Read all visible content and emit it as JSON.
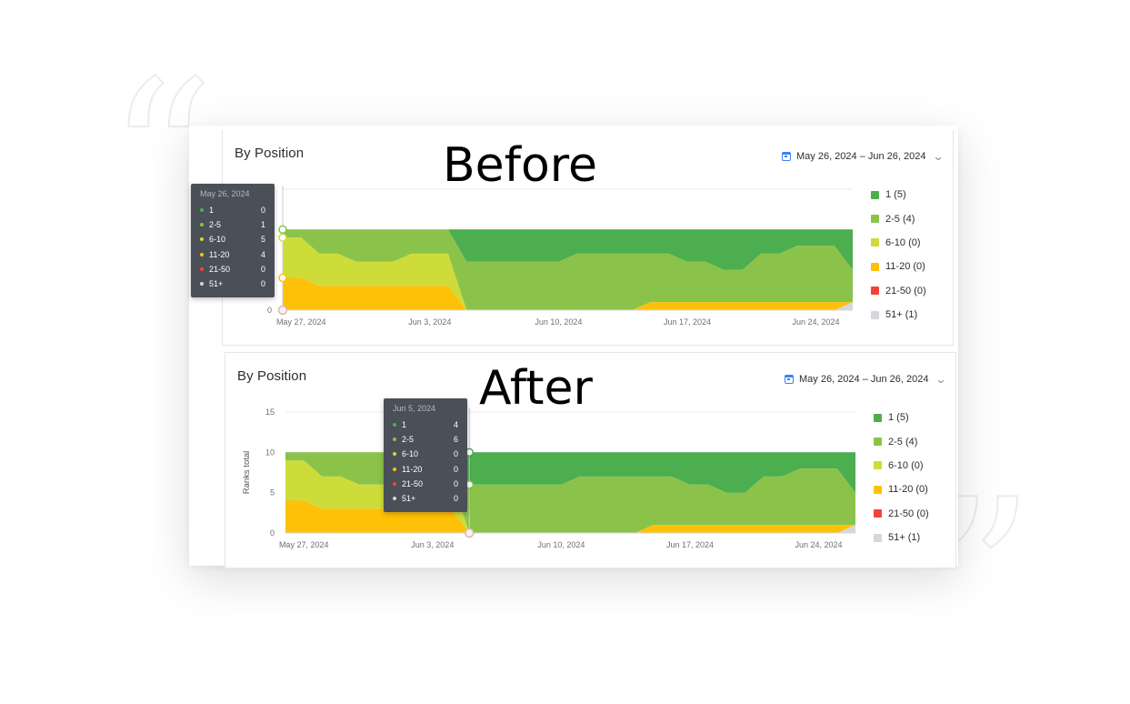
{
  "colors": {
    "1": "#4cae4f",
    "2-5": "#8bc34a",
    "6-10": "#cddc39",
    "11-20": "#ffc107",
    "21-50": "#f44336",
    "51+": "#d3d7de"
  },
  "panels": [
    {
      "id": "before",
      "title": "By Position",
      "overlay_label": "Before",
      "date_range": "May 26, 2024 – Jun 26, 2024",
      "legend": [
        {
          "key": "1",
          "label": "1 (5)"
        },
        {
          "key": "2-5",
          "label": "2-5 (4)"
        },
        {
          "key": "6-10",
          "label": "6-10 (0)"
        },
        {
          "key": "11-20",
          "label": "11-20 (0)"
        },
        {
          "key": "21-50",
          "label": "21-50 (0)"
        },
        {
          "key": "51+",
          "label": "51+ (1)"
        }
      ],
      "tooltip": {
        "date": "May 26, 2024",
        "rows": [
          {
            "key": "1",
            "name": "1",
            "value": "0"
          },
          {
            "key": "2-5",
            "name": "2-5",
            "value": "1"
          },
          {
            "key": "6-10",
            "name": "6-10",
            "value": "5"
          },
          {
            "key": "11-20",
            "name": "11-20",
            "value": "4"
          },
          {
            "key": "21-50",
            "name": "21-50",
            "value": "0"
          },
          {
            "key": "51+",
            "name": "51+",
            "value": "0"
          }
        ]
      }
    },
    {
      "id": "after",
      "title": "By Position",
      "overlay_label": "After",
      "date_range": "May 26, 2024 – Jun 26, 2024",
      "legend": [
        {
          "key": "1",
          "label": "1 (5)"
        },
        {
          "key": "2-5",
          "label": "2-5 (4)"
        },
        {
          "key": "6-10",
          "label": "6-10 (0)"
        },
        {
          "key": "11-20",
          "label": "11-20 (0)"
        },
        {
          "key": "21-50",
          "label": "21-50 (0)"
        },
        {
          "key": "51+",
          "label": "51+ (1)"
        }
      ],
      "tooltip": {
        "date": "Jun 5, 2024",
        "rows": [
          {
            "key": "1",
            "name": "1",
            "value": "4"
          },
          {
            "key": "2-5",
            "name": "2-5",
            "value": "6"
          },
          {
            "key": "6-10",
            "name": "6-10",
            "value": "0"
          },
          {
            "key": "11-20",
            "name": "11-20",
            "value": "0"
          },
          {
            "key": "21-50",
            "name": "21-50",
            "value": "0"
          },
          {
            "key": "51+",
            "name": "51+",
            "value": "0"
          }
        ]
      }
    }
  ],
  "chart_data": [
    {
      "panel": "before",
      "type": "area",
      "stacked": true,
      "title": "By Position",
      "ylabel": "",
      "y_ticks": [
        0
      ],
      "ylim": [
        0,
        15
      ],
      "x_ticks": [
        "May 27, 2024",
        "Jun 3, 2024",
        "Jun 10, 2024",
        "Jun 17, 2024",
        "Jun 24, 2024"
      ],
      "x": [
        "2024-05-26",
        "2024-05-27",
        "2024-05-28",
        "2024-05-29",
        "2024-05-30",
        "2024-05-31",
        "2024-06-01",
        "2024-06-02",
        "2024-06-03",
        "2024-06-04",
        "2024-06-05",
        "2024-06-06",
        "2024-06-07",
        "2024-06-08",
        "2024-06-09",
        "2024-06-10",
        "2024-06-11",
        "2024-06-12",
        "2024-06-13",
        "2024-06-14",
        "2024-06-15",
        "2024-06-16",
        "2024-06-17",
        "2024-06-18",
        "2024-06-19",
        "2024-06-20",
        "2024-06-21",
        "2024-06-22",
        "2024-06-23",
        "2024-06-24",
        "2024-06-25",
        "2024-06-26"
      ],
      "series": [
        {
          "key": "51+",
          "name": "51+",
          "values": [
            0,
            0,
            0,
            0,
            0,
            0,
            0,
            0,
            0,
            0,
            0,
            0,
            0,
            0,
            0,
            0,
            0,
            0,
            0,
            0,
            0,
            0,
            0,
            0,
            0,
            0,
            0,
            0,
            0,
            0,
            0,
            1
          ]
        },
        {
          "key": "11-20",
          "name": "11-20",
          "values": [
            4,
            4,
            3,
            3,
            3,
            3,
            3,
            3,
            3,
            3,
            0,
            0,
            0,
            0,
            0,
            0,
            0,
            0,
            0,
            0,
            1,
            1,
            1,
            1,
            1,
            1,
            1,
            1,
            1,
            1,
            1,
            0
          ]
        },
        {
          "key": "6-10",
          "name": "6-10",
          "values": [
            5,
            5,
            4,
            4,
            3,
            3,
            3,
            4,
            4,
            4,
            0,
            0,
            0,
            0,
            0,
            0,
            0,
            0,
            0,
            0,
            0,
            0,
            0,
            0,
            0,
            0,
            0,
            0,
            0,
            0,
            0,
            0
          ]
        },
        {
          "key": "2-5",
          "name": "2-5",
          "values": [
            1,
            1,
            3,
            3,
            4,
            4,
            4,
            3,
            3,
            3,
            6,
            6,
            6,
            6,
            6,
            6,
            7,
            7,
            7,
            7,
            6,
            6,
            5,
            5,
            4,
            4,
            6,
            6,
            7,
            7,
            7,
            4
          ]
        },
        {
          "key": "1",
          "name": "1",
          "values": [
            0,
            0,
            0,
            0,
            0,
            0,
            0,
            0,
            0,
            0,
            4,
            4,
            4,
            4,
            4,
            4,
            3,
            3,
            3,
            3,
            3,
            3,
            4,
            4,
            5,
            5,
            3,
            3,
            2,
            2,
            2,
            5
          ]
        }
      ]
    },
    {
      "panel": "after",
      "type": "area",
      "stacked": true,
      "title": "By Position",
      "ylabel": "Ranks total",
      "y_ticks": [
        0,
        5,
        10,
        15
      ],
      "ylim": [
        0,
        15
      ],
      "x_ticks": [
        "May 27, 2024",
        "Jun 3, 2024",
        "Jun 10, 2024",
        "Jun 17, 2024",
        "Jun 24, 2024"
      ],
      "x": [
        "2024-05-26",
        "2024-05-27",
        "2024-05-28",
        "2024-05-29",
        "2024-05-30",
        "2024-05-31",
        "2024-06-01",
        "2024-06-02",
        "2024-06-03",
        "2024-06-04",
        "2024-06-05",
        "2024-06-06",
        "2024-06-07",
        "2024-06-08",
        "2024-06-09",
        "2024-06-10",
        "2024-06-11",
        "2024-06-12",
        "2024-06-13",
        "2024-06-14",
        "2024-06-15",
        "2024-06-16",
        "2024-06-17",
        "2024-06-18",
        "2024-06-19",
        "2024-06-20",
        "2024-06-21",
        "2024-06-22",
        "2024-06-23",
        "2024-06-24",
        "2024-06-25",
        "2024-06-26"
      ],
      "series": [
        {
          "key": "51+",
          "name": "51+",
          "values": [
            0,
            0,
            0,
            0,
            0,
            0,
            0,
            0,
            0,
            0,
            0,
            0,
            0,
            0,
            0,
            0,
            0,
            0,
            0,
            0,
            0,
            0,
            0,
            0,
            0,
            0,
            0,
            0,
            0,
            0,
            0,
            1
          ]
        },
        {
          "key": "11-20",
          "name": "11-20",
          "values": [
            4,
            4,
            3,
            3,
            3,
            3,
            3,
            3,
            3,
            3,
            0,
            0,
            0,
            0,
            0,
            0,
            0,
            0,
            0,
            0,
            1,
            1,
            1,
            1,
            1,
            1,
            1,
            1,
            1,
            1,
            1,
            0
          ]
        },
        {
          "key": "6-10",
          "name": "6-10",
          "values": [
            5,
            5,
            4,
            4,
            3,
            3,
            3,
            4,
            4,
            4,
            0,
            0,
            0,
            0,
            0,
            0,
            0,
            0,
            0,
            0,
            0,
            0,
            0,
            0,
            0,
            0,
            0,
            0,
            0,
            0,
            0,
            0
          ]
        },
        {
          "key": "2-5",
          "name": "2-5",
          "values": [
            1,
            1,
            3,
            3,
            4,
            4,
            4,
            3,
            3,
            3,
            6,
            6,
            6,
            6,
            6,
            6,
            7,
            7,
            7,
            7,
            6,
            6,
            5,
            5,
            4,
            4,
            6,
            6,
            7,
            7,
            7,
            4
          ]
        },
        {
          "key": "1",
          "name": "1",
          "values": [
            0,
            0,
            0,
            0,
            0,
            0,
            0,
            0,
            0,
            0,
            4,
            4,
            4,
            4,
            4,
            4,
            3,
            3,
            3,
            3,
            3,
            3,
            4,
            4,
            5,
            5,
            3,
            3,
            2,
            2,
            2,
            5
          ]
        }
      ]
    }
  ]
}
